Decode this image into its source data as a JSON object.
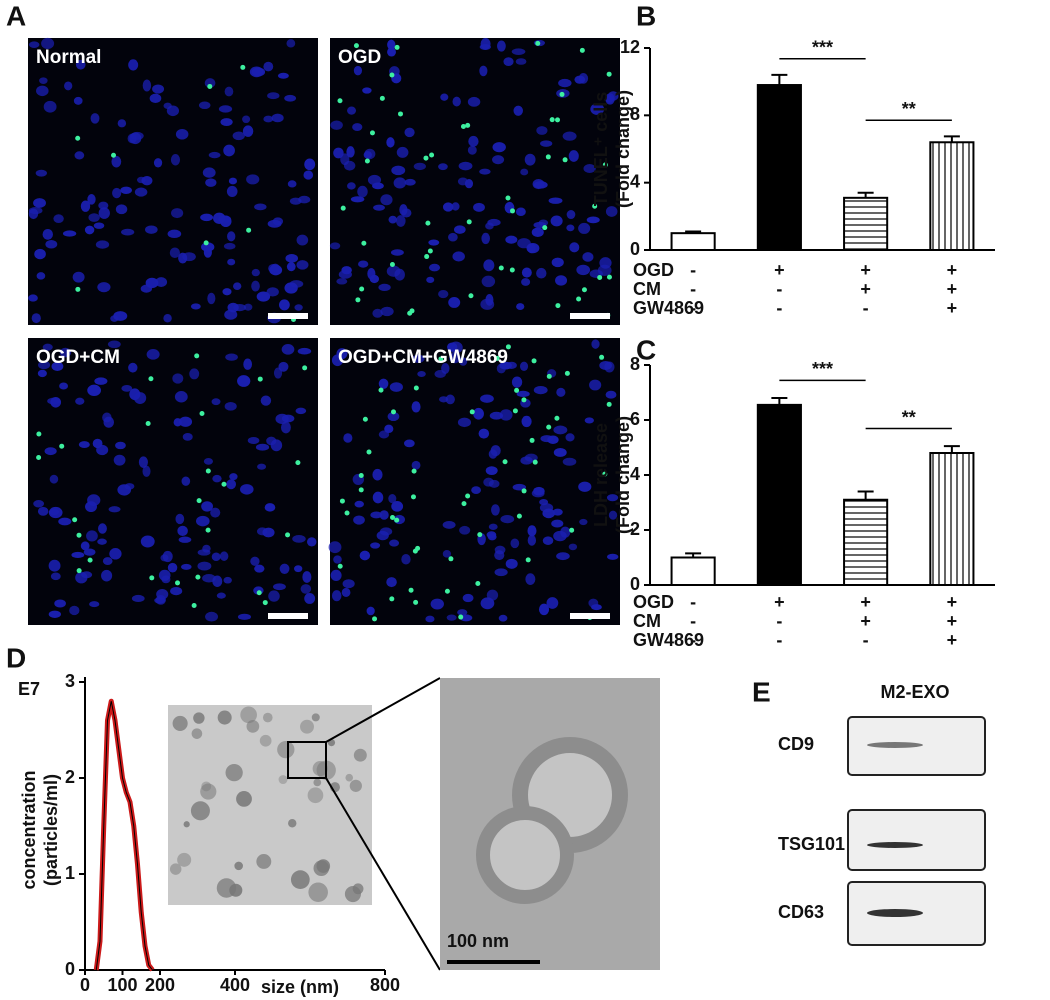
{
  "panel_labels": [
    "A",
    "B",
    "C",
    "D",
    "E"
  ],
  "micrographs": [
    "Normal",
    "OGD",
    "OGD+CM",
    "OGD+CM+GW4869"
  ],
  "tem_scale": "100 nm",
  "blot": {
    "title": "M2-EXO",
    "rows": [
      "CD9",
      "TSG101",
      "CD63"
    ]
  },
  "chart_data": [
    {
      "type": "bar",
      "ylabel": [
        "TUNEL⁺ cells",
        "(Fold change)"
      ],
      "values": [
        1.0,
        9.8,
        3.1,
        6.4
      ],
      "errors": [
        0.1,
        0.6,
        0.3,
        0.35
      ],
      "fills": [
        "white",
        "black",
        "horizontal",
        "vertical"
      ],
      "ylim": [
        0,
        12
      ],
      "yticks": [
        0,
        4,
        8,
        12
      ],
      "annotations": [
        {
          "text": "***",
          "between": [
            1,
            2
          ]
        },
        {
          "text": "**",
          "between": [
            2,
            3
          ]
        }
      ],
      "conditions": [
        {
          "name": "OGD",
          "values": [
            "-",
            "+",
            "+",
            "+"
          ]
        },
        {
          "name": "CM",
          "values": [
            "-",
            "-",
            "+",
            "+"
          ]
        },
        {
          "name": "GW4869",
          "values": [
            "-",
            "-",
            "-",
            "+"
          ]
        }
      ]
    },
    {
      "type": "bar",
      "ylabel": [
        "LDH release",
        "(Fold change)"
      ],
      "values": [
        1.0,
        6.55,
        3.1,
        4.8
      ],
      "errors": [
        0.15,
        0.25,
        0.3,
        0.25
      ],
      "fills": [
        "white",
        "black",
        "horizontal",
        "vertical"
      ],
      "ylim": [
        0,
        8
      ],
      "yticks": [
        0,
        2,
        4,
        6,
        8
      ],
      "annotations": [
        {
          "text": "***",
          "between": [
            1,
            2
          ]
        },
        {
          "text": "**",
          "between": [
            2,
            3
          ]
        }
      ],
      "conditions": [
        {
          "name": "OGD",
          "values": [
            "-",
            "+",
            "+",
            "+"
          ]
        },
        {
          "name": "CM",
          "values": [
            "-",
            "-",
            "+",
            "+"
          ]
        },
        {
          "name": "GW4869",
          "values": [
            "-",
            "-",
            "-",
            "+"
          ]
        }
      ]
    },
    {
      "type": "line",
      "ylabel": [
        "concentration",
        "(particles/ml)"
      ],
      "y_multiplier": "E7",
      "xlabel": "size (nm)",
      "x": [
        30,
        40,
        50,
        60,
        70,
        80,
        90,
        100,
        110,
        120,
        130,
        140,
        150,
        160,
        170,
        180
      ],
      "series": [
        {
          "color": "#cc1a1a",
          "values": [
            0,
            0.3,
            1.5,
            2.6,
            2.8,
            2.6,
            2.3,
            2.0,
            1.85,
            1.75,
            1.5,
            1.1,
            0.6,
            0.25,
            0.05,
            0
          ]
        }
      ],
      "xlim": [
        0,
        800
      ],
      "xticks": [
        0,
        100,
        200,
        400,
        800
      ],
      "ylim": [
        0,
        3
      ],
      "yticks": [
        0,
        1,
        2,
        3
      ]
    }
  ]
}
